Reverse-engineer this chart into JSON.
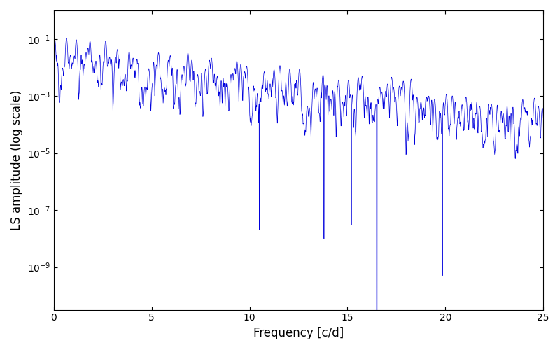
{
  "title": "",
  "xlabel": "Frequency [c/d]",
  "ylabel": "LS amplitude (log scale)",
  "xlim": [
    0,
    25
  ],
  "ylim_log_min": -10.5,
  "ylim_log_max": 0,
  "line_color": "#0000dd",
  "line_width": 0.5,
  "background_color": "#ffffff",
  "yscale": "log",
  "yticks": [
    1e-09,
    1e-07,
    1e-05,
    0.001,
    0.1
  ],
  "xticks": [
    0,
    5,
    10,
    15,
    20,
    25
  ],
  "seed": 12345,
  "n_points": 5000,
  "freq_max": 25.0
}
